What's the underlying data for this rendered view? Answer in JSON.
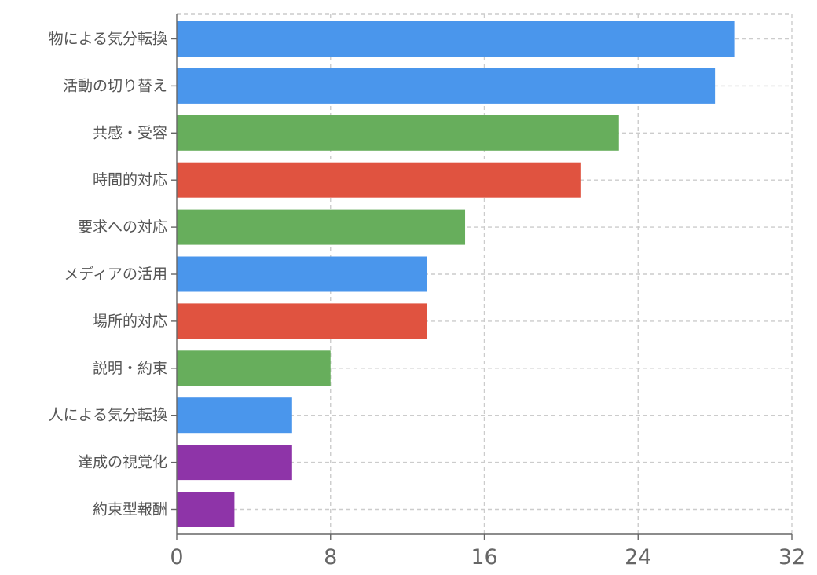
{
  "chart_data": {
    "type": "bar",
    "orientation": "horizontal",
    "title": "",
    "xlabel": "",
    "ylabel": "",
    "xlim": [
      0,
      32
    ],
    "x_ticks": [
      0,
      8,
      16,
      24,
      32
    ],
    "grid": true,
    "legend": "none",
    "categories": [
      "物による気分転換",
      "活動の切り替え",
      "共感・受容",
      "時間的対応",
      "要求への対応",
      "メディアの活用",
      "場所的対応",
      "説明・約束",
      "人による気分転換",
      "達成の視覚化",
      "約束型報酬"
    ],
    "values": [
      29,
      28,
      23,
      21,
      15,
      13,
      13,
      8,
      6,
      6,
      3
    ],
    "bar_colors": [
      "#4A96EC",
      "#4A96EC",
      "#67AE5C",
      "#E05340",
      "#67AE5C",
      "#4A96EC",
      "#E05340",
      "#67AE5C",
      "#4A96EC",
      "#8E34A8",
      "#8E34A8"
    ]
  }
}
